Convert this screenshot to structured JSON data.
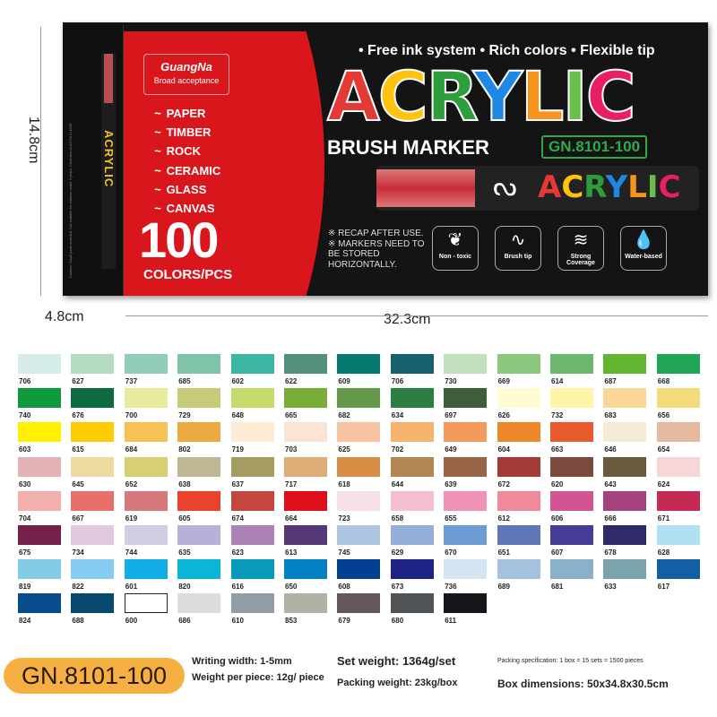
{
  "box": {
    "brand": "GuangNa",
    "tagline": "Broad acceptance",
    "surfaces": [
      "PAPER",
      "TIMBER",
      "ROCK",
      "CERAMIC",
      "GLASS",
      "CANVAS"
    ],
    "surface_icon": "brush-stroke-icon",
    "count": "100",
    "count_label": "COLORS/PCS",
    "features_line": "• Free ink system • Rich colors • Flexible tip",
    "title_letters": [
      {
        "ch": "A",
        "color": "#e53935"
      },
      {
        "ch": "C",
        "color": "#ffc20e"
      },
      {
        "ch": "R",
        "color": "#2e9d3c"
      },
      {
        "ch": "Y",
        "color": "#1e88e5"
      },
      {
        "ch": "L",
        "color": "#f7941d"
      },
      {
        "ch": "I",
        "color": "#6abf4b"
      },
      {
        "ch": "C",
        "color": "#e91e63"
      }
    ],
    "subtitle": "BRUSH MARKER",
    "model": "GN.8101-100",
    "side_word": "ACRYLIC",
    "pen_word": "ACRYLIC",
    "notes": [
      "※ RECAP AFTER USE.",
      "※ MARKERS NEED TO BE STORED HORIZONTALLY."
    ],
    "badges": [
      {
        "label": "Non - toxic",
        "icon": "leaf-icon"
      },
      {
        "label": "Brush tip",
        "icon": "brush-stroke-icon"
      },
      {
        "label": "Strong Coverage",
        "icon": "coverage-icon"
      },
      {
        "label": "Water-based",
        "icon": "water-drop-icon"
      }
    ]
  },
  "dimensions": {
    "height": "14.8cm",
    "depth": "4.8cm",
    "width": "32.3cm"
  },
  "swatches": [
    [
      "706",
      "#d4ebe7"
    ],
    [
      "627",
      "#b3dcc0"
    ],
    [
      "737",
      "#92cdb7"
    ],
    [
      "685",
      "#7fc4a8"
    ],
    [
      "602",
      "#3cb7a3"
    ],
    [
      "622",
      "#52907c"
    ],
    [
      "609",
      "#067a70"
    ],
    [
      "706",
      "#17606e"
    ],
    [
      "730",
      "#c3e0bc"
    ],
    [
      "669",
      "#8cc87e"
    ],
    [
      "614",
      "#6db86e"
    ],
    [
      "687",
      "#63b531"
    ],
    [
      "668",
      "#20a556"
    ],
    [
      "740",
      "#0e9a3c"
    ],
    [
      "676",
      "#0b6a40"
    ],
    [
      "700",
      "#e6ec9c"
    ],
    [
      "729",
      "#c6cb7a"
    ],
    [
      "648",
      "#c4da6a"
    ],
    [
      "665",
      "#78ad38"
    ],
    [
      "682",
      "#649848"
    ],
    [
      "634",
      "#2d7e43"
    ],
    [
      "697",
      "#3e5e39"
    ],
    [
      "626",
      "#fffcd3"
    ],
    [
      "732",
      "#fff5a8"
    ],
    [
      "683",
      "#f8d795"
    ],
    [
      "656",
      "#f2dc7c"
    ],
    [
      "603",
      "#fff100"
    ],
    [
      "615",
      "#ffcc00"
    ],
    [
      "684",
      "#f8c156"
    ],
    [
      "802",
      "#eaaa40"
    ],
    [
      "719",
      "#fdebd3"
    ],
    [
      "703",
      "#fbe3d6"
    ],
    [
      "625",
      "#f6c4a2"
    ],
    [
      "702",
      "#f5b36e"
    ],
    [
      "649",
      "#f19a5c"
    ],
    [
      "604",
      "#ee8728"
    ],
    [
      "663",
      "#e65a2c"
    ],
    [
      "646",
      "#f4ead6"
    ],
    [
      "654",
      "#e4b9a0"
    ],
    [
      "630",
      "#e3b2b4"
    ],
    [
      "645",
      "#eedaa0"
    ],
    [
      "652",
      "#d7d072"
    ],
    [
      "638",
      "#c1b797"
    ],
    [
      "637",
      "#a59c62"
    ],
    [
      "717",
      "#deae78"
    ],
    [
      "618",
      "#d98e45"
    ],
    [
      "644",
      "#b38652"
    ],
    [
      "639",
      "#9a6447"
    ],
    [
      "672",
      "#a23b36"
    ],
    [
      "620",
      "#7a4a3c"
    ],
    [
      "643",
      "#6b5b3e"
    ],
    [
      "624",
      "#f7d6d7"
    ],
    [
      "704",
      "#f2b0ac"
    ],
    [
      "667",
      "#e86f6a"
    ],
    [
      "619",
      "#d7787c"
    ],
    [
      "605",
      "#e8432d"
    ],
    [
      "674",
      "#c3463f"
    ],
    [
      "664",
      "#df0e1b"
    ],
    [
      "723",
      "#f8e0ea"
    ],
    [
      "658",
      "#f5bfd3"
    ],
    [
      "655",
      "#ee92b6"
    ],
    [
      "612",
      "#ee8a9a"
    ],
    [
      "606",
      "#d25493"
    ],
    [
      "666",
      "#a5427f"
    ],
    [
      "671",
      "#c52a55"
    ],
    [
      "675",
      "#73214a"
    ],
    [
      "734",
      "#e2c9e2"
    ],
    [
      "744",
      "#d1cde3"
    ],
    [
      "635",
      "#b5b1d8"
    ],
    [
      "623",
      "#ad82b6"
    ],
    [
      "613",
      "#563878"
    ],
    [
      "745",
      "#aec4e3"
    ],
    [
      "629",
      "#94aed8"
    ],
    [
      "670",
      "#6b9dd2"
    ],
    [
      "651",
      "#6177b8"
    ],
    [
      "607",
      "#463d94"
    ],
    [
      "678",
      "#2f2b68"
    ],
    [
      "628",
      "#b1e0f0"
    ],
    [
      "819",
      "#83cbe6"
    ],
    [
      "822",
      "#84cdf0"
    ],
    [
      "601",
      "#10aee4"
    ],
    [
      "820",
      "#0cb5d7"
    ],
    [
      "616",
      "#0899bb"
    ],
    [
      "650",
      "#0480c5"
    ],
    [
      "608",
      "#053f92"
    ],
    [
      "673",
      "#1d2483"
    ],
    [
      "736",
      "#d4e4f0"
    ],
    [
      "689",
      "#a6c1de"
    ],
    [
      "681",
      "#89b1c9"
    ],
    [
      "633",
      "#7ba3ab"
    ],
    [
      "617",
      "#145fa4"
    ],
    [
      "824",
      "#074b8b"
    ],
    [
      "688",
      "#084a6d"
    ],
    [
      "600",
      "#ffffff"
    ],
    [
      "686",
      "#dcdcdc"
    ],
    [
      "610",
      "#929ea5"
    ],
    [
      "853",
      "#afb3a5"
    ],
    [
      "679",
      "#64575c"
    ],
    [
      "680",
      "#4f5356"
    ],
    [
      "611",
      "#17171b"
    ]
  ],
  "specs": {
    "model": "GN.8101-100",
    "writing_width": "Writing width: 1-5mm",
    "weight_piece": "Weight per piece: 12g/ piece",
    "set_weight": "Set weight: 1364g/set",
    "packing_weight": "Packing weight: 23kg/box",
    "packing_spec": "Packing specification: 1 box = 15 sets = 1500 pieces",
    "box_dimensions": "Box dimensions: 50x34.8x30.5cm"
  }
}
